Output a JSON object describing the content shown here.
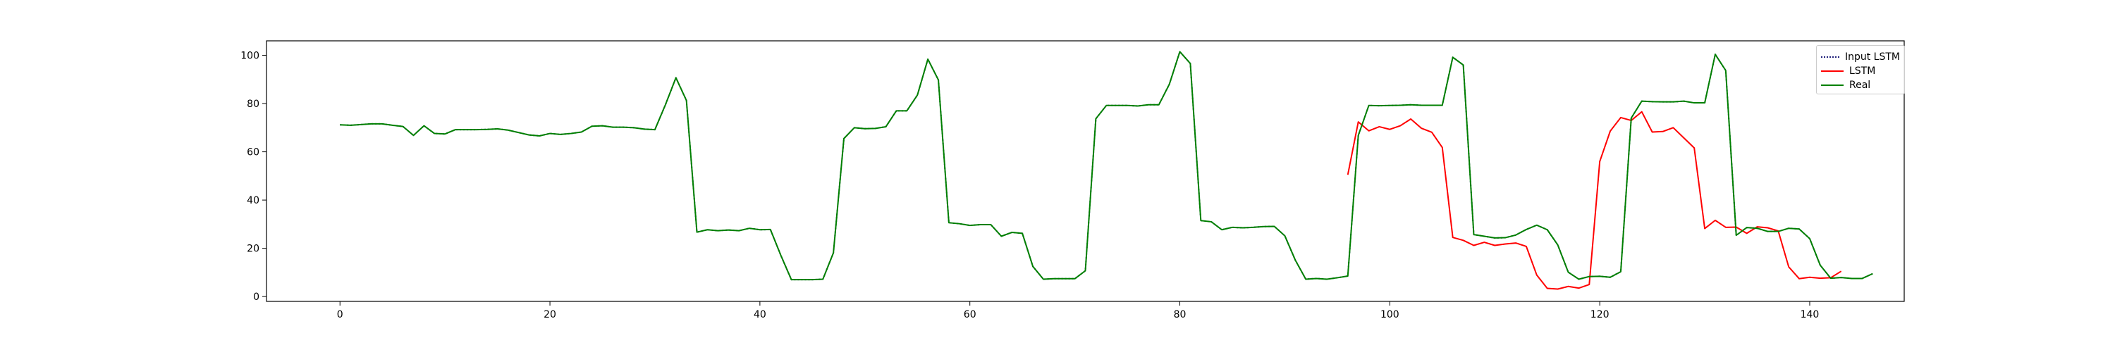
{
  "chart_data": {
    "type": "line",
    "title": "",
    "xlabel": "",
    "ylabel": "",
    "xlim": [
      -7,
      149
    ],
    "ylim": [
      -2,
      106
    ],
    "xticks": [
      0,
      20,
      40,
      60,
      80,
      100,
      120,
      140
    ],
    "yticks": [
      0,
      20,
      40,
      60,
      80,
      100
    ],
    "grid": false,
    "legend_position": "top-right",
    "series": [
      {
        "name": "Input LSTM",
        "color": "#1f1f7a",
        "style": "dotted",
        "x_start": 0,
        "values": [
          71.2,
          71.0,
          71.3,
          71.6,
          71.6,
          71.0,
          70.5,
          66.8,
          70.8,
          67.6,
          67.4,
          69.2,
          69.2,
          69.2,
          69.3,
          69.5,
          69.0,
          68.0,
          67.0,
          66.6,
          67.6,
          67.2,
          67.6,
          68.2,
          70.6,
          70.8,
          70.2,
          70.2,
          70.0,
          69.4,
          69.2,
          79.5,
          90.7,
          81.3,
          26.7,
          27.7,
          27.3,
          27.6,
          27.3,
          28.3,
          27.7,
          27.8,
          17.0,
          7.0,
          7.0,
          7.0,
          7.2,
          18.1,
          65.5,
          70.0,
          69.6,
          69.7,
          70.4,
          77.0,
          77.0,
          83.5,
          98.4,
          89.8,
          30.6,
          30.2,
          29.5,
          29.8,
          29.8,
          25.0,
          26.6,
          26.2,
          12.5,
          7.2,
          7.4,
          7.4,
          7.4,
          10.7,
          73.7,
          79.2,
          79.2,
          79.2,
          79.0,
          79.5,
          79.5,
          88.0,
          101.5,
          96.6,
          31.5,
          31.0,
          27.7,
          28.7,
          28.5,
          28.7,
          29.0,
          29.1,
          25.2,
          15.1,
          7.2,
          7.5,
          7.2,
          7.8,
          8.5,
          66.8,
          79.2,
          79.1,
          79.2,
          79.3,
          79.5,
          79.3,
          79.3,
          79.3,
          99.2,
          96.0,
          25.7,
          25.0,
          24.3,
          24.4,
          25.5,
          27.8,
          29.6,
          27.7,
          21.4,
          10.1,
          7.2,
          8.3,
          8.4,
          8.0,
          10.3,
          74.0,
          81.0,
          80.8,
          80.7,
          80.7,
          81.0,
          80.3,
          80.3,
          100.4,
          93.7,
          25.4,
          28.6,
          28.3,
          27.0,
          27.0,
          28.3,
          28.0,
          24.0,
          13.0,
          7.6,
          7.9,
          7.5,
          7.5,
          9.5
        ]
      },
      {
        "name": "LSTM",
        "color": "#ff0000",
        "style": "solid",
        "x_start": 96,
        "values": [
          50.5,
          72.4,
          68.7,
          70.4,
          69.3,
          70.8,
          73.6,
          69.8,
          68.1,
          61.8,
          24.5,
          23.3,
          21.2,
          22.5,
          21.2,
          21.8,
          22.2,
          20.8,
          8.9,
          3.4,
          3.1,
          4.2,
          3.5,
          5.0,
          56.0,
          68.6,
          74.2,
          73.0,
          76.6,
          68.2,
          68.4,
          70.0,
          65.8,
          61.6,
          28.2,
          31.6,
          28.7,
          28.8,
          26.2,
          28.9,
          28.5,
          27.2,
          12.3,
          7.4,
          8.0,
          7.6,
          7.8,
          10.5
        ]
      },
      {
        "name": "Real",
        "color": "#008000",
        "style": "solid",
        "x_start": 0,
        "values": [
          71.2,
          71.0,
          71.3,
          71.6,
          71.6,
          71.0,
          70.5,
          66.8,
          70.8,
          67.6,
          67.4,
          69.2,
          69.2,
          69.2,
          69.3,
          69.5,
          69.0,
          68.0,
          67.0,
          66.6,
          67.6,
          67.2,
          67.6,
          68.2,
          70.6,
          70.8,
          70.2,
          70.2,
          70.0,
          69.4,
          69.2,
          79.5,
          90.7,
          81.3,
          26.7,
          27.7,
          27.3,
          27.6,
          27.3,
          28.3,
          27.7,
          27.8,
          17.0,
          7.0,
          7.0,
          7.0,
          7.2,
          18.1,
          65.5,
          70.0,
          69.6,
          69.7,
          70.4,
          77.0,
          77.0,
          83.5,
          98.4,
          89.8,
          30.6,
          30.2,
          29.5,
          29.8,
          29.8,
          25.0,
          26.6,
          26.2,
          12.5,
          7.2,
          7.4,
          7.4,
          7.4,
          10.7,
          73.7,
          79.2,
          79.2,
          79.2,
          79.0,
          79.5,
          79.5,
          88.0,
          101.5,
          96.6,
          31.5,
          31.0,
          27.7,
          28.7,
          28.5,
          28.7,
          29.0,
          29.1,
          25.2,
          15.1,
          7.2,
          7.5,
          7.2,
          7.8,
          8.5,
          66.8,
          79.2,
          79.1,
          79.2,
          79.3,
          79.5,
          79.3,
          79.3,
          79.3,
          99.2,
          96.0,
          25.7,
          25.0,
          24.3,
          24.4,
          25.5,
          27.8,
          29.6,
          27.7,
          21.4,
          10.1,
          7.2,
          8.3,
          8.4,
          8.0,
          10.3,
          74.0,
          81.0,
          80.8,
          80.7,
          80.7,
          81.0,
          80.3,
          80.3,
          100.4,
          93.7,
          25.4,
          28.6,
          28.3,
          27.0,
          27.0,
          28.3,
          28.0,
          24.0,
          13.0,
          7.6,
          7.9,
          7.5,
          7.5,
          9.5
        ]
      }
    ]
  },
  "legend": {
    "items": [
      {
        "label": "Input LSTM"
      },
      {
        "label": "LSTM"
      },
      {
        "label": "Real"
      }
    ]
  }
}
